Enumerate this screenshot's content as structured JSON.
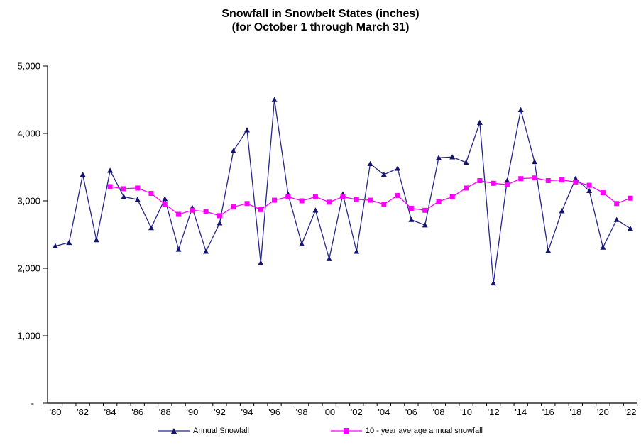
{
  "title": {
    "line1": "Snowfall in Snowbelt States (inches)",
    "line2": "(for October 1 through March 31)"
  },
  "legend": {
    "items": [
      {
        "label": "Annual Snowfall",
        "marker": "triangle-icon",
        "color": "#1A1A78"
      },
      {
        "label": "10 - year average annual snowfall",
        "marker": "square-icon",
        "color": "#FF00FF"
      }
    ]
  },
  "colors": {
    "annual_series": "#26268A",
    "annual_marker": "#14146E",
    "average_series": "#FF00FF",
    "average_marker": "#FF00FF",
    "axis": "#000000",
    "text": "#000000",
    "background": "#FFFFFF"
  },
  "chart_data": {
    "type": "line",
    "title": "Snowfall in Snowbelt States (inches) (for October 1 through March 31)",
    "xlabel": "",
    "ylabel": "",
    "ylim": [
      0,
      5000
    ],
    "y_tick_labels": [
      "-",
      "1,000",
      "2,000",
      "3,000",
      "4,000",
      "5,000"
    ],
    "x_tick_labels": [
      "'80",
      "'82",
      "'84",
      "'86",
      "'88",
      "'90",
      "'92",
      "'94",
      "'96",
      "'98",
      "'00",
      "'02",
      "'04",
      "'06",
      "'08",
      "'10",
      "'12",
      "'14",
      "'16",
      "'18",
      "'20",
      "'22"
    ],
    "years": [
      1980,
      1981,
      1982,
      1983,
      1984,
      1985,
      1986,
      1987,
      1988,
      1989,
      1990,
      1991,
      1992,
      1993,
      1994,
      1995,
      1996,
      1997,
      1998,
      1999,
      2000,
      2001,
      2002,
      2003,
      2004,
      2005,
      2006,
      2007,
      2008,
      2009,
      2010,
      2011,
      2012,
      2013,
      2014,
      2015,
      2016,
      2017,
      2018,
      2019,
      2020,
      2021,
      2022
    ],
    "grid": false,
    "legend_position": "bottom",
    "series": [
      {
        "name": "Annual Snowfall",
        "marker": "triangle",
        "start_year": 1980,
        "values": [
          2330,
          2380,
          3390,
          2420,
          3450,
          3060,
          3020,
          2600,
          3030,
          2280,
          2900,
          2250,
          2670,
          3740,
          4050,
          2080,
          4500,
          3100,
          2360,
          2860,
          2140,
          3100,
          2250,
          3550,
          3390,
          3480,
          2720,
          2640,
          3640,
          3650,
          3570,
          4160,
          1780,
          3300,
          4350,
          3580,
          2260,
          2850,
          3330,
          3150,
          2310,
          2720,
          2590
        ]
      },
      {
        "name": "10 - year average annual snowfall",
        "marker": "square",
        "start_year": 1984,
        "values": [
          3210,
          3180,
          3190,
          3110,
          2950,
          2800,
          2860,
          2840,
          2780,
          2910,
          2960,
          2870,
          3010,
          3060,
          3000,
          3060,
          2980,
          3060,
          3020,
          3010,
          2950,
          3080,
          2890,
          2860,
          2990,
          3060,
          3190,
          3300,
          3260,
          3240,
          3330,
          3340,
          3300,
          3310,
          3280,
          3230,
          3120,
          2960,
          3040
        ]
      }
    ]
  }
}
